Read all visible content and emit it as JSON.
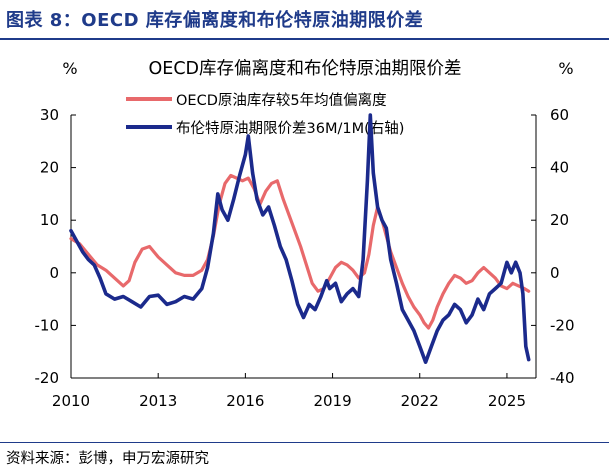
{
  "figure": {
    "header": "图表 8：OECD 库存偏离度和布伦特原油期限价差",
    "source": "资料来源：彭博，申万宏源研究"
  },
  "chart_data": {
    "type": "line",
    "title": "OECD库存偏离度和布伦特原油期限价差",
    "ylabel_left": "%",
    "ylabel_right": "%",
    "left_axis": {
      "min": -20,
      "max": 30,
      "ticks": [
        30,
        20,
        10,
        0,
        -10,
        -20
      ]
    },
    "right_axis": {
      "min": -40,
      "max": 60,
      "ticks": [
        60,
        40,
        20,
        0,
        -20,
        -40
      ]
    },
    "x_axis": {
      "min": 2010,
      "max": 2026,
      "ticks": [
        2010,
        2013,
        2016,
        2019,
        2022,
        2025
      ]
    },
    "grid": false,
    "legend_position": "top-center",
    "series": [
      {
        "name": "OECD原油库存较5年均值偏离度",
        "axis": "left",
        "color": "#e8696b",
        "points": [
          [
            2010.0,
            6.5
          ],
          [
            2010.3,
            5.5
          ],
          [
            2010.6,
            3.5
          ],
          [
            2010.9,
            1.5
          ],
          [
            2011.2,
            0.5
          ],
          [
            2011.5,
            -1.0
          ],
          [
            2011.8,
            -2.5
          ],
          [
            2012.0,
            -1.5
          ],
          [
            2012.2,
            2.0
          ],
          [
            2012.45,
            4.5
          ],
          [
            2012.7,
            5.0
          ],
          [
            2013.0,
            3.0
          ],
          [
            2013.3,
            1.5
          ],
          [
            2013.6,
            0.0
          ],
          [
            2013.9,
            -0.5
          ],
          [
            2014.2,
            -0.5
          ],
          [
            2014.5,
            0.5
          ],
          [
            2014.7,
            2.5
          ],
          [
            2014.9,
            7.0
          ],
          [
            2015.1,
            13.0
          ],
          [
            2015.3,
            17.0
          ],
          [
            2015.5,
            18.5
          ],
          [
            2015.7,
            18.0
          ],
          [
            2015.9,
            17.5
          ],
          [
            2016.1,
            18.0
          ],
          [
            2016.3,
            16.0
          ],
          [
            2016.5,
            13.0
          ],
          [
            2016.7,
            15.5
          ],
          [
            2016.9,
            17.0
          ],
          [
            2017.1,
            17.5
          ],
          [
            2017.3,
            14.0
          ],
          [
            2017.5,
            11.0
          ],
          [
            2017.7,
            8.0
          ],
          [
            2017.9,
            5.0
          ],
          [
            2018.1,
            1.5
          ],
          [
            2018.3,
            -2.0
          ],
          [
            2018.5,
            -3.5
          ],
          [
            2018.7,
            -3.0
          ],
          [
            2018.9,
            -1.0
          ],
          [
            2019.1,
            1.0
          ],
          [
            2019.3,
            2.0
          ],
          [
            2019.5,
            1.5
          ],
          [
            2019.7,
            0.5
          ],
          [
            2019.9,
            -1.0
          ],
          [
            2020.1,
            0.0
          ],
          [
            2020.25,
            3.5
          ],
          [
            2020.4,
            9.0
          ],
          [
            2020.55,
            12.5
          ],
          [
            2020.7,
            10.0
          ],
          [
            2020.85,
            7.0
          ],
          [
            2021.0,
            4.0
          ],
          [
            2021.2,
            1.0
          ],
          [
            2021.4,
            -2.0
          ],
          [
            2021.6,
            -4.5
          ],
          [
            2021.8,
            -6.5
          ],
          [
            2022.0,
            -8.0
          ],
          [
            2022.15,
            -9.5
          ],
          [
            2022.3,
            -10.5
          ],
          [
            2022.45,
            -9.0
          ],
          [
            2022.6,
            -6.5
          ],
          [
            2022.8,
            -4.0
          ],
          [
            2023.0,
            -2.0
          ],
          [
            2023.2,
            -0.5
          ],
          [
            2023.4,
            -1.0
          ],
          [
            2023.6,
            -2.0
          ],
          [
            2023.8,
            -1.5
          ],
          [
            2024.0,
            0.0
          ],
          [
            2024.2,
            1.0
          ],
          [
            2024.4,
            0.0
          ],
          [
            2024.6,
            -1.0
          ],
          [
            2024.8,
            -2.5
          ],
          [
            2025.0,
            -3.0
          ],
          [
            2025.2,
            -2.0
          ],
          [
            2025.4,
            -2.5
          ],
          [
            2025.6,
            -3.0
          ],
          [
            2025.75,
            -3.5
          ]
        ]
      },
      {
        "name": "布伦特原油期限价差36M/1M(右轴)",
        "axis": "right",
        "color": "#1b2a8c",
        "points": [
          [
            2010.0,
            16.0
          ],
          [
            2010.2,
            12.0
          ],
          [
            2010.4,
            8.0
          ],
          [
            2010.6,
            5.0
          ],
          [
            2010.8,
            3.0
          ],
          [
            2011.0,
            -2.0
          ],
          [
            2011.2,
            -8.0
          ],
          [
            2011.5,
            -10.0
          ],
          [
            2011.8,
            -9.0
          ],
          [
            2012.1,
            -11.0
          ],
          [
            2012.4,
            -13.0
          ],
          [
            2012.7,
            -9.0
          ],
          [
            2013.0,
            -8.5
          ],
          [
            2013.3,
            -12.0
          ],
          [
            2013.6,
            -11.0
          ],
          [
            2013.9,
            -9.0
          ],
          [
            2014.2,
            -10.0
          ],
          [
            2014.5,
            -6.0
          ],
          [
            2014.7,
            2.0
          ],
          [
            2014.9,
            15.0
          ],
          [
            2015.05,
            30.0
          ],
          [
            2015.2,
            24.0
          ],
          [
            2015.4,
            20.0
          ],
          [
            2015.6,
            28.0
          ],
          [
            2015.8,
            37.0
          ],
          [
            2016.0,
            45.0
          ],
          [
            2016.1,
            52.0
          ],
          [
            2016.25,
            38.0
          ],
          [
            2016.4,
            28.0
          ],
          [
            2016.6,
            22.0
          ],
          [
            2016.8,
            25.0
          ],
          [
            2017.0,
            18.0
          ],
          [
            2017.2,
            10.0
          ],
          [
            2017.4,
            5.0
          ],
          [
            2017.6,
            -3.0
          ],
          [
            2017.8,
            -12.0
          ],
          [
            2018.0,
            -17.0
          ],
          [
            2018.2,
            -12.0
          ],
          [
            2018.4,
            -14.0
          ],
          [
            2018.6,
            -9.0
          ],
          [
            2018.8,
            -3.0
          ],
          [
            2018.9,
            -6.0
          ],
          [
            2019.1,
            -4.0
          ],
          [
            2019.3,
            -11.0
          ],
          [
            2019.5,
            -8.0
          ],
          [
            2019.7,
            -6.0
          ],
          [
            2019.9,
            -9.0
          ],
          [
            2020.05,
            5.0
          ],
          [
            2020.2,
            35.0
          ],
          [
            2020.3,
            60.0
          ],
          [
            2020.4,
            38.0
          ],
          [
            2020.55,
            25.0
          ],
          [
            2020.7,
            20.0
          ],
          [
            2020.85,
            17.0
          ],
          [
            2021.0,
            5.0
          ],
          [
            2021.2,
            -4.0
          ],
          [
            2021.4,
            -14.0
          ],
          [
            2021.6,
            -18.0
          ],
          [
            2021.8,
            -22.0
          ],
          [
            2022.0,
            -28.0
          ],
          [
            2022.2,
            -34.0
          ],
          [
            2022.4,
            -28.0
          ],
          [
            2022.6,
            -22.0
          ],
          [
            2022.8,
            -18.0
          ],
          [
            2023.0,
            -16.0
          ],
          [
            2023.2,
            -12.0
          ],
          [
            2023.4,
            -14.0
          ],
          [
            2023.6,
            -19.0
          ],
          [
            2023.8,
            -16.0
          ],
          [
            2024.0,
            -10.0
          ],
          [
            2024.2,
            -14.0
          ],
          [
            2024.4,
            -8.0
          ],
          [
            2024.6,
            -6.0
          ],
          [
            2024.8,
            -4.0
          ],
          [
            2025.0,
            4.0
          ],
          [
            2025.15,
            0.0
          ],
          [
            2025.3,
            4.0
          ],
          [
            2025.45,
            0.0
          ],
          [
            2025.55,
            -8.0
          ],
          [
            2025.65,
            -28.0
          ],
          [
            2025.75,
            -33.0
          ]
        ]
      }
    ]
  }
}
